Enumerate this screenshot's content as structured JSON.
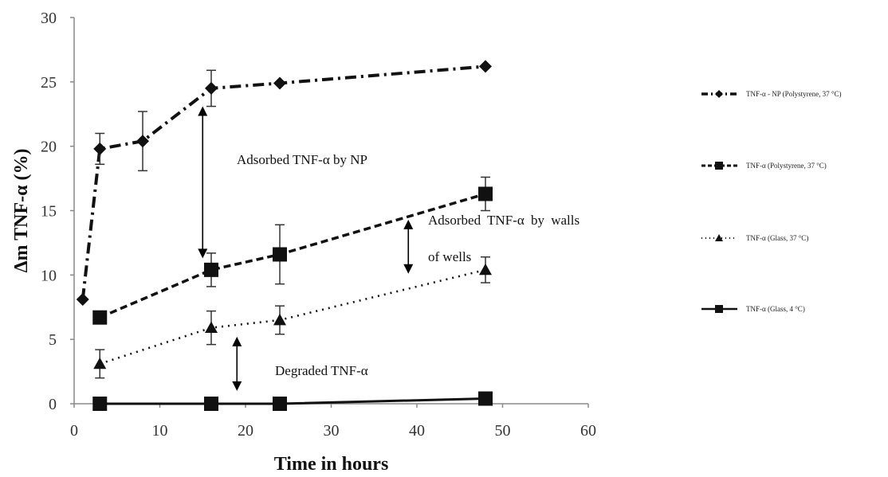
{
  "chart_data": {
    "type": "line",
    "xlabel": "Time in hours",
    "ylabel": "Δm TNF-α (%)",
    "xlim": [
      0,
      60
    ],
    "ylim": [
      0,
      30
    ],
    "xticks": [
      0,
      10,
      20,
      30,
      40,
      50,
      60
    ],
    "yticks": [
      0,
      5,
      10,
      15,
      20,
      25,
      30
    ],
    "grid": false,
    "legend_position": "right",
    "series": [
      {
        "name": "TNF-α - NP (Polystyrene, 37 °C)",
        "marker": "diamond",
        "line": "dash-dot",
        "x": [
          1,
          3,
          8,
          16,
          24,
          48
        ],
        "y": [
          8.1,
          19.8,
          20.4,
          24.5,
          24.9,
          26.2
        ],
        "err": [
          0,
          1.2,
          2.3,
          1.4,
          0,
          0
        ]
      },
      {
        "name": "TNF-α (Polystyrene, 37 °C)",
        "marker": "square",
        "line": "dashed",
        "x": [
          3,
          16,
          24,
          48
        ],
        "y": [
          6.7,
          10.4,
          11.6,
          16.3
        ],
        "err": [
          0,
          1.3,
          2.3,
          1.3
        ]
      },
      {
        "name": "TNF-α (Glass, 37 °C)",
        "marker": "triangle",
        "line": "dotted",
        "x": [
          3,
          16,
          24,
          48
        ],
        "y": [
          3.1,
          5.9,
          6.5,
          10.4
        ],
        "err": [
          1.1,
          1.3,
          1.1,
          1.0
        ]
      },
      {
        "name": "TNF-α (Glass, 4 °C)",
        "marker": "square",
        "line": "solid",
        "x": [
          3,
          16,
          24,
          48
        ],
        "y": [
          0,
          0,
          0,
          0.4
        ],
        "err": [
          0,
          0,
          0,
          0
        ]
      }
    ],
    "annotations": [
      {
        "text": "Adsorbed TNF-α by NP",
        "arrow_x": 15,
        "arrow_y": [
          11.3,
          23.1
        ]
      },
      {
        "text": "Adsorbed TNF-α by walls",
        "text2": "of wells",
        "arrow_x": 39,
        "arrow_y": [
          10.1,
          14.3
        ]
      },
      {
        "text": "Degraded TNF-α",
        "arrow_x": 19,
        "arrow_y": [
          1.0,
          5.2
        ]
      }
    ]
  }
}
